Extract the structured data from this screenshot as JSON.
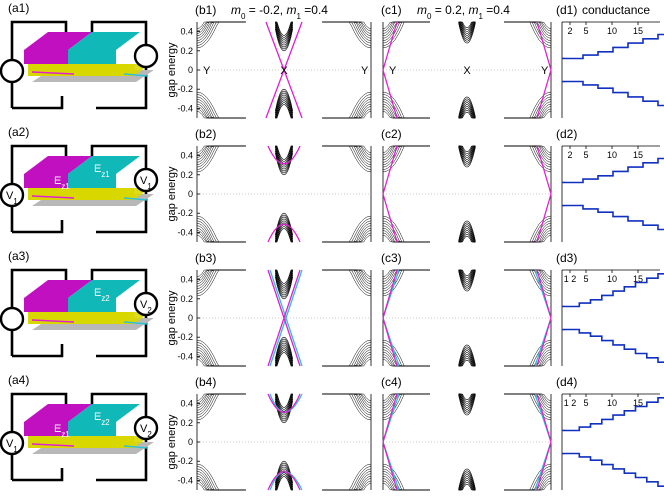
{
  "rows": [
    {
      "device_label": "(a1)",
      "left_source": "",
      "right_source": "",
      "fields": [],
      "b_label": "(b1)",
      "b_title": "m0 = -0.2, m1 =0.4",
      "c_label": "(c1)",
      "c_title": "m0 = 0.2, m1 =0.4",
      "d_label": "(d1)",
      "d_title": "conductance",
      "d_ticks": [
        "2",
        "5",
        "10",
        "15"
      ],
      "k_labels": [
        "Y",
        "X",
        "Y"
      ],
      "b_edge": "magenta",
      "c_edge": "magenta"
    },
    {
      "device_label": "(a2)",
      "left_source": "V1",
      "right_source": "V1",
      "fields": [
        "Ez1",
        "Ez1"
      ],
      "b_label": "(b2)",
      "b_title": "",
      "c_label": "(c2)",
      "c_title": "",
      "d_label": "(d2)",
      "d_title": "",
      "d_ticks": [
        "2",
        "5",
        "10",
        "15"
      ],
      "k_labels": [],
      "b_edge": "magenta",
      "c_edge": "magenta"
    },
    {
      "device_label": "(a3)",
      "left_source": "",
      "right_source": "V2",
      "fields": [
        "",
        "Ez2"
      ],
      "b_label": "(b3)",
      "b_title": "",
      "c_label": "(c3)",
      "c_title": "",
      "d_label": "(d3)",
      "d_title": "",
      "d_ticks": [
        "1 2",
        "5",
        "10",
        "15"
      ],
      "k_labels": [],
      "b_edge": "both",
      "c_edge": "both"
    },
    {
      "device_label": "(a4)",
      "left_source": "V1",
      "right_source": "V2",
      "fields": [
        "Ez1",
        "Ez2"
      ],
      "b_label": "(b4)",
      "b_title": "",
      "c_label": "(c4)",
      "c_title": "",
      "d_label": "(d4)",
      "d_title": "",
      "d_ticks": [
        "1 2",
        "5",
        "10",
        "15"
      ],
      "k_labels": [],
      "b_edge": "both",
      "c_edge": "both"
    }
  ],
  "y_axis_label": "gap energy",
  "y_ticks": [
    "0.4",
    "0.2",
    "0",
    "-0.2",
    "-0.4"
  ],
  "colors": {
    "magenta": "#e020d0",
    "cyan": "#30c0d8",
    "blue": "#1030c0",
    "layer_magenta": "#c010c0",
    "layer_cyan": "#10b8b8",
    "layer_yellow": "#d8d800",
    "layer_gray": "#b8b8b8"
  }
}
